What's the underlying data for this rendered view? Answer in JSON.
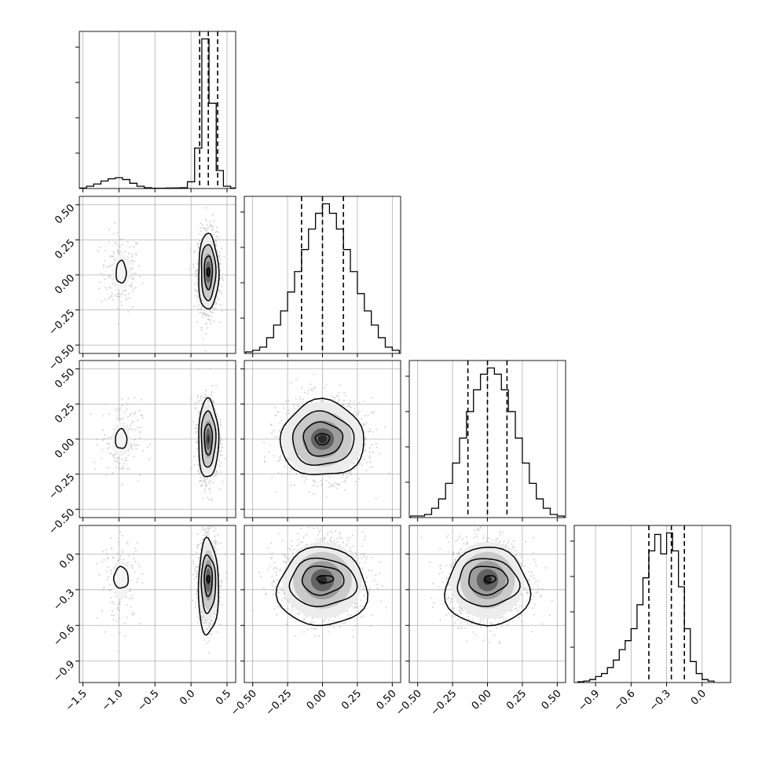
{
  "chart_data": {
    "type": "corner",
    "parameters": [
      {
        "range": [
          -1.55,
          0.62
        ],
        "ticks": [
          -1.5,
          -1.0,
          -0.5,
          0.0,
          0.5
        ],
        "tick_labels": [
          "−1.5",
          "−1.0",
          "−0.5",
          "0.0",
          "0.5"
        ],
        "quantiles": [
          0.12,
          0.24,
          0.37
        ]
      },
      {
        "range": [
          -0.56,
          0.56
        ],
        "ticks": [
          -0.5,
          -0.25,
          0.0,
          0.25,
          0.5
        ],
        "tick_labels": [
          "−0.50",
          "−0.25",
          "0.00",
          "0.25",
          "0.50"
        ],
        "quantiles": [
          -0.15,
          0.0,
          0.15
        ]
      },
      {
        "range": [
          -0.56,
          0.56
        ],
        "ticks": [
          -0.5,
          -0.25,
          0.0,
          0.25,
          0.5
        ],
        "tick_labels": [
          "−0.50",
          "−0.25",
          "0.00",
          "0.25",
          "0.50"
        ],
        "quantiles": [
          -0.14,
          0.0,
          0.14
        ]
      },
      {
        "range": [
          -1.08,
          0.24
        ],
        "ticks": [
          -0.9,
          -0.6,
          -0.3,
          0.0
        ],
        "tick_labels": [
          "−0.9",
          "−0.6",
          "−0.3",
          "0.0"
        ],
        "quantiles": [
          -0.45,
          -0.26,
          -0.15
        ]
      }
    ],
    "histograms": [
      {
        "bin_edges": [
          -1.55,
          -1.45,
          -1.35,
          -1.25,
          -1.15,
          -1.05,
          -0.95,
          -0.85,
          -0.75,
          -0.65,
          -0.55,
          -0.45,
          -0.35,
          -0.25,
          -0.15,
          -0.05,
          0.05,
          0.15,
          0.25,
          0.35,
          0.45,
          0.55,
          0.62
        ],
        "counts": [
          0.3,
          1.5,
          3,
          5,
          6.5,
          7.2,
          6,
          3.5,
          1.5,
          0.5,
          0.2,
          0.2,
          0.3,
          0.4,
          0.5,
          4.5,
          27,
          100,
          57,
          12,
          1.5,
          0.3
        ]
      },
      {
        "bin_edges": [
          -0.55,
          -0.5,
          -0.45,
          -0.4,
          -0.35,
          -0.3,
          -0.25,
          -0.2,
          -0.15,
          -0.1,
          -0.05,
          0.0,
          0.05,
          0.1,
          0.15,
          0.2,
          0.25,
          0.3,
          0.35,
          0.4,
          0.45,
          0.5,
          0.55
        ],
        "counts": [
          1,
          2,
          4,
          10,
          18,
          27,
          39,
          52,
          66,
          79,
          89,
          95,
          89,
          79,
          66,
          52,
          38,
          27,
          18,
          10,
          4,
          2
        ]
      },
      {
        "bin_edges": [
          -0.55,
          -0.5,
          -0.45,
          -0.4,
          -0.35,
          -0.3,
          -0.25,
          -0.2,
          -0.15,
          -0.1,
          -0.05,
          0.0,
          0.05,
          0.1,
          0.15,
          0.2,
          0.25,
          0.3,
          0.35,
          0.4,
          0.45,
          0.5,
          0.55
        ],
        "counts": [
          1,
          1,
          2,
          6,
          12,
          22,
          35,
          51,
          68,
          82,
          92,
          96,
          92,
          82,
          68,
          51,
          35,
          22,
          12,
          6,
          2,
          1
        ]
      },
      {
        "bin_edges": [
          -1.05,
          -1.0,
          -0.95,
          -0.9,
          -0.85,
          -0.8,
          -0.75,
          -0.7,
          -0.65,
          -0.6,
          -0.55,
          -0.5,
          -0.45,
          -0.4,
          -0.35,
          -0.3,
          -0.25,
          -0.2,
          -0.15,
          -0.1,
          -0.05,
          0.0,
          0.05,
          0.1
        ],
        "counts": [
          0.5,
          1,
          2,
          4,
          6,
          10,
          15,
          22,
          28,
          36,
          52,
          70,
          88,
          99,
          86,
          100,
          88,
          64,
          36,
          14,
          6,
          2,
          1
        ]
      }
    ],
    "pairs": [
      {
        "row": 1,
        "col": 0,
        "blobs": [
          {
            "center": [
              -0.97,
              0.02
            ],
            "spread": [
              0.14,
              0.14
            ],
            "weight": 0.12
          },
          {
            "center": [
              0.24,
              0.02
            ],
            "spread": [
              0.07,
              0.14
            ],
            "weight": 0.88
          }
        ],
        "contours": [
          {
            "center": [
              -0.97,
              0.02
            ],
            "radii": [
              0.07,
              0.08
            ]
          },
          {
            "center": [
              0.24,
              0.02
            ],
            "radii": [
              0.14,
              0.27
            ]
          },
          {
            "center": [
              0.24,
              0.02
            ],
            "radii": [
              0.1,
              0.2
            ]
          },
          {
            "center": [
              0.24,
              0.02
            ],
            "radii": [
              0.055,
              0.12
            ]
          },
          {
            "center": [
              0.24,
              0.02
            ],
            "radii": [
              0.02,
              0.03
            ]
          }
        ]
      },
      {
        "row": 2,
        "col": 0,
        "blobs": [
          {
            "center": [
              -0.97,
              0.0
            ],
            "spread": [
              0.14,
              0.14
            ],
            "weight": 0.12
          },
          {
            "center": [
              0.24,
              0.0
            ],
            "spread": [
              0.07,
              0.14
            ],
            "weight": 0.88
          }
        ],
        "contours": [
          {
            "center": [
              -0.97,
              0.0
            ],
            "radii": [
              0.08,
              0.07
            ]
          },
          {
            "center": [
              0.24,
              0.0
            ],
            "radii": [
              0.14,
              0.28
            ]
          },
          {
            "center": [
              0.24,
              0.0
            ],
            "radii": [
              0.1,
              0.2
            ]
          },
          {
            "center": [
              0.24,
              0.0
            ],
            "radii": [
              0.055,
              0.11
            ]
          }
        ]
      },
      {
        "row": 2,
        "col": 1,
        "blobs": [
          {
            "center": [
              0.0,
              0.0
            ],
            "spread": [
              0.15,
              0.14
            ],
            "weight": 1.0
          }
        ],
        "contours": [
          {
            "center": [
              0.0,
              0.0
            ],
            "radii": [
              0.3,
              0.27
            ]
          },
          {
            "center": [
              0.0,
              0.0
            ],
            "radii": [
              0.22,
              0.19
            ]
          },
          {
            "center": [
              0.0,
              0.0
            ],
            "radii": [
              0.14,
              0.12
            ]
          },
          {
            "center": [
              0.0,
              0.0
            ],
            "radii": [
              0.05,
              0.04
            ]
          }
        ]
      },
      {
        "row": 3,
        "col": 0,
        "blobs": [
          {
            "center": [
              -0.97,
              -0.22
            ],
            "spread": [
              0.14,
              0.18
            ],
            "weight": 0.12
          },
          {
            "center": [
              0.24,
              -0.22
            ],
            "spread": [
              0.07,
              0.18
            ],
            "weight": 0.88
          }
        ],
        "contours": [
          {
            "center": [
              -0.97,
              -0.2
            ],
            "radii": [
              0.1,
              0.09
            ]
          },
          {
            "center": [
              0.24,
              -0.28
            ],
            "radii": [
              0.14,
              0.4
            ]
          },
          {
            "center": [
              0.24,
              -0.25
            ],
            "radii": [
              0.1,
              0.24
            ]
          },
          {
            "center": [
              0.24,
              -0.22
            ],
            "radii": [
              0.055,
              0.13
            ]
          },
          {
            "center": [
              0.24,
              -0.21
            ],
            "radii": [
              0.02,
              0.03
            ]
          }
        ]
      },
      {
        "row": 3,
        "col": 1,
        "blobs": [
          {
            "center": [
              0.0,
              -0.22
            ],
            "spread": [
              0.15,
              0.17
            ],
            "weight": 1.0
          }
        ],
        "contours": [
          {
            "center": [
              0.0,
              -0.28
            ],
            "radii": [
              0.32,
              0.33
            ]
          },
          {
            "center": [
              0.0,
              -0.24
            ],
            "radii": [
              0.24,
              0.2
            ]
          },
          {
            "center": [
              0.0,
              -0.22
            ],
            "radii": [
              0.15,
              0.12
            ]
          },
          {
            "center": [
              0.02,
              -0.21
            ],
            "radii": [
              0.06,
              0.03
            ]
          }
        ]
      },
      {
        "row": 3,
        "col": 2,
        "blobs": [
          {
            "center": [
              0.0,
              -0.22
            ],
            "spread": [
              0.14,
              0.17
            ],
            "weight": 1.0
          }
        ],
        "contours": [
          {
            "center": [
              0.0,
              -0.28
            ],
            "radii": [
              0.3,
              0.33
            ]
          },
          {
            "center": [
              0.0,
              -0.24
            ],
            "radii": [
              0.22,
              0.2
            ]
          },
          {
            "center": [
              0.0,
              -0.22
            ],
            "radii": [
              0.14,
              0.12
            ]
          },
          {
            "center": [
              0.02,
              -0.21
            ],
            "radii": [
              0.04,
              0.03
            ]
          }
        ]
      }
    ],
    "grid": true,
    "colors": {
      "line": "#000000",
      "grid": "#b0b0b0",
      "scatter": "#9a9a9a",
      "frame": "#000000"
    }
  }
}
